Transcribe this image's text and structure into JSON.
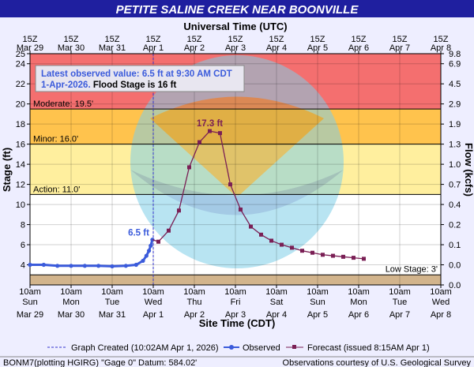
{
  "header": {
    "title": "PETITE SALINE CREEK NEAR BOONVILLE",
    "top_axis_title": "Universal Time (UTC)"
  },
  "callout": {
    "line1": "Latest observed value: 6.5 ft at 9:30 AM CDT",
    "line2_date": "1-Apr-2026.",
    "line2_text": " Flood Stage is 16 ft"
  },
  "footer": {
    "left": "BONM7(plotting HGIRG) \"Gage 0\" Datum: 584.02'",
    "right": "Observations courtesy of U.S. Geological Survey"
  },
  "colors": {
    "major": "#f46f6f",
    "moderate": "#ffc34d",
    "minor": "#ffef9e",
    "normal": "#ffffff",
    "low": "#d2b48c",
    "observed": "#3b5bdb",
    "forecast": "#7a1f55",
    "graph_line": "#3333cc",
    "title_bg": "#1f1f9f"
  },
  "chart_data": {
    "type": "line",
    "title": "PETITE SALINE CREEK NEAR BOONVILLE",
    "xlabel": "Site Time (CDT)",
    "ylabel": "Stage (ft)",
    "y2label": "Flow (kcfs)",
    "x2label": "Universal Time (UTC)",
    "xlim": [
      0,
      240
    ],
    "ylim": [
      2,
      25
    ],
    "grid": true,
    "bottom_ticks": [
      {
        "t": 0,
        "l1": "10am",
        "l2": "Sun",
        "l3": "Mar 29"
      },
      {
        "t": 24,
        "l1": "10am",
        "l2": "Mon",
        "l3": "Mar 30"
      },
      {
        "t": 48,
        "l1": "10am",
        "l2": "Tue",
        "l3": "Mar 31"
      },
      {
        "t": 72,
        "l1": "10am",
        "l2": "Wed",
        "l3": "Apr 1"
      },
      {
        "t": 96,
        "l1": "10am",
        "l2": "Thu",
        "l3": "Apr 2"
      },
      {
        "t": 120,
        "l1": "10am",
        "l2": "Fri",
        "l3": "Apr 3"
      },
      {
        "t": 144,
        "l1": "10am",
        "l2": "Sat",
        "l3": "Apr 4"
      },
      {
        "t": 168,
        "l1": "10am",
        "l2": "Sun",
        "l3": "Apr 5"
      },
      {
        "t": 192,
        "l1": "10am",
        "l2": "Mon",
        "l3": "Apr 6"
      },
      {
        "t": 216,
        "l1": "10am",
        "l2": "Tue",
        "l3": "Apr 7"
      },
      {
        "t": 240,
        "l1": "10am",
        "l2": "Wed",
        "l3": "Apr 8"
      }
    ],
    "top_ticks": [
      {
        "t": 0,
        "l1": "15Z",
        "l2": "Mar 29"
      },
      {
        "t": 24,
        "l1": "15Z",
        "l2": "Mar 30"
      },
      {
        "t": 48,
        "l1": "15Z",
        "l2": "Mar 31"
      },
      {
        "t": 72,
        "l1": "15Z",
        "l2": "Apr 1"
      },
      {
        "t": 96,
        "l1": "15Z",
        "l2": "Apr 2"
      },
      {
        "t": 120,
        "l1": "15Z",
        "l2": "Apr 3"
      },
      {
        "t": 144,
        "l1": "15Z",
        "l2": "Apr 4"
      },
      {
        "t": 168,
        "l1": "15Z",
        "l2": "Apr 5"
      },
      {
        "t": 192,
        "l1": "15Z",
        "l2": "Apr 6"
      },
      {
        "t": 216,
        "l1": "15Z",
        "l2": "Apr 7"
      },
      {
        "t": 240,
        "l1": "15Z",
        "l2": "Apr 8"
      }
    ],
    "y_ticks": [
      4,
      6,
      8,
      10,
      12,
      14,
      16,
      18,
      20,
      22,
      24
    ],
    "y_extra_ticks": [
      25
    ],
    "flow_ticks": [
      {
        "y": 25,
        "label": "9.8"
      },
      {
        "y": 24,
        "label": "6.9"
      },
      {
        "y": 22,
        "label": "4.5"
      },
      {
        "y": 20,
        "label": "2.9"
      },
      {
        "y": 18,
        "label": "1.9"
      },
      {
        "y": 16,
        "label": "1.3"
      },
      {
        "y": 14,
        "label": "1.0"
      },
      {
        "y": 12,
        "label": "0.7"
      },
      {
        "y": 10,
        "label": "0.4"
      },
      {
        "y": 8,
        "label": "0.2"
      },
      {
        "y": 6,
        "label": "0.1"
      },
      {
        "y": 4,
        "label": "0.0"
      },
      {
        "y": 2,
        "label": "0.0"
      }
    ],
    "bands": [
      {
        "name": "major",
        "from": 19.5,
        "to": 25
      },
      {
        "name": "moderate",
        "from": 16.0,
        "to": 19.5
      },
      {
        "name": "minor",
        "from": 11.0,
        "to": 16.0
      },
      {
        "name": "normal",
        "from": 3.0,
        "to": 11.0
      },
      {
        "name": "low",
        "from": 2,
        "to": 3.0
      }
    ],
    "thresholds": [
      {
        "label": "Moderate: 19.5'",
        "value": 19.5
      },
      {
        "label": "Minor: 16.0'",
        "value": 16.0
      },
      {
        "label": "Action: 11.0'",
        "value": 11.0
      },
      {
        "label": "Low Stage: 3'",
        "value": 3.0
      }
    ],
    "graph_created_t": 72,
    "series": [
      {
        "name": "Observed",
        "x": [
          0,
          8,
          16,
          24,
          32,
          40,
          48,
          56,
          62,
          66,
          68,
          69.5,
          70.5,
          71.5
        ],
        "y": [
          4.0,
          4.0,
          3.9,
          3.9,
          3.9,
          3.9,
          3.85,
          3.9,
          4.0,
          4.4,
          4.9,
          5.4,
          5.9,
          6.5
        ]
      },
      {
        "name": "Forecast",
        "x": [
          71.5,
          75,
          81,
          87,
          93,
          99,
          105,
          111,
          117,
          123,
          129,
          135,
          141,
          147,
          153,
          159,
          165,
          171,
          177,
          183,
          189,
          195
        ],
        "y": [
          6.5,
          6.3,
          7.4,
          9.4,
          13.7,
          16.2,
          17.3,
          17.1,
          12.0,
          9.5,
          7.8,
          7.0,
          6.4,
          6.0,
          5.7,
          5.4,
          5.2,
          5.0,
          4.9,
          4.8,
          4.7,
          4.6
        ]
      }
    ],
    "annotations": [
      {
        "text": "6.5 ft",
        "t": 71.5,
        "y": 6.5
      },
      {
        "text": "17.3 ft",
        "t": 105,
        "y": 17.3
      }
    ],
    "legend": {
      "graph_created": "Graph Created (10:02AM Apr 1, 2026)",
      "observed": "Observed",
      "forecast": "Forecast (issued 8:15AM Apr 1)"
    },
    "legend_position": "bottom"
  }
}
